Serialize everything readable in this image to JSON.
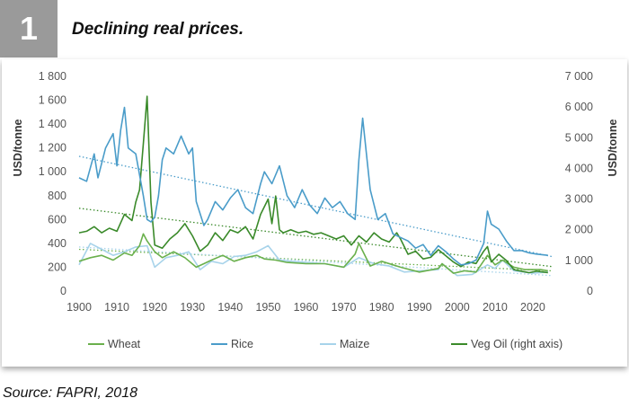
{
  "figure": {
    "number": "1",
    "title": "Declining real prices.",
    "source": "Source: FAPRI, 2018"
  },
  "colors": {
    "wheat": "#6ab04c",
    "rice": "#4a9cc9",
    "maize": "#a7d3ea",
    "vegoil": "#3a8a2a",
    "axis_text": "#555555",
    "grid": "#cccccc"
  },
  "chart_data": {
    "type": "line",
    "title": "Declining real prices.",
    "ylabel": "USD/tonne",
    "y2label": "USD/tonne",
    "xlim": [
      1900,
      2025
    ],
    "ylim": [
      0,
      1800
    ],
    "y2lim": [
      0,
      7000
    ],
    "grid": false,
    "legend": "bottom",
    "x_ticks": [
      1900,
      1910,
      1920,
      1930,
      1940,
      1950,
      1960,
      1970,
      1980,
      1990,
      2000,
      2010,
      2020
    ],
    "y_ticks": [
      {
        "v": 0,
        "label": "0"
      },
      {
        "v": 200,
        "label": "200"
      },
      {
        "v": 400,
        "label": "400"
      },
      {
        "v": 600,
        "label": "600"
      },
      {
        "v": 800,
        "label": "800"
      },
      {
        "v": 1000,
        "label": "1 000"
      },
      {
        "v": 1200,
        "label": "1 200"
      },
      {
        "v": 1400,
        "label": "1 400"
      },
      {
        "v": 1600,
        "label": "1 600"
      },
      {
        "v": 1800,
        "label": "1 800"
      }
    ],
    "y2_ticks": [
      {
        "v": 0,
        "label": "0"
      },
      {
        "v": 1000,
        "label": "1 000"
      },
      {
        "v": 2000,
        "label": "2 000"
      },
      {
        "v": 3000,
        "label": "3 000"
      },
      {
        "v": 4000,
        "label": "4 000"
      },
      {
        "v": 5000,
        "label": "5 000"
      },
      {
        "v": 6000,
        "label": "6 000"
      },
      {
        "v": 7000,
        "label": "7 000"
      }
    ],
    "series": [
      {
        "key": "wheat",
        "name": "Wheat",
        "axis": "left",
        "x": [
          1900,
          1903,
          1906,
          1909,
          1912,
          1914,
          1916,
          1917,
          1918,
          1920,
          1922,
          1925,
          1928,
          1931,
          1933,
          1935,
          1938,
          1941,
          1944,
          1947,
          1949,
          1952,
          1955,
          1960,
          1965,
          1970,
          1973,
          1974,
          1977,
          1980,
          1985,
          1990,
          1995,
          1996,
          1999,
          2002,
          2005,
          2008,
          2010,
          2012,
          2015,
          2018,
          2022,
          2024
        ],
        "values": [
          250,
          280,
          300,
          260,
          320,
          300,
          380,
          480,
          420,
          330,
          280,
          330,
          280,
          200,
          230,
          260,
          300,
          250,
          280,
          300,
          270,
          260,
          240,
          230,
          230,
          200,
          310,
          400,
          210,
          250,
          200,
          160,
          190,
          230,
          150,
          170,
          160,
          300,
          220,
          260,
          200,
          180,
          180,
          170
        ],
        "trend": [
          350,
          170
        ]
      },
      {
        "key": "rice",
        "name": "Rice",
        "axis": "left",
        "x": [
          1900,
          1902,
          1904,
          1905,
          1907,
          1909,
          1910,
          1911,
          1912,
          1913,
          1915,
          1917,
          1918,
          1919,
          1920,
          1921,
          1922,
          1923,
          1925,
          1927,
          1929,
          1930,
          1931,
          1933,
          1934,
          1936,
          1938,
          1940,
          1942,
          1944,
          1946,
          1948,
          1949,
          1951,
          1953,
          1955,
          1957,
          1959,
          1961,
          1963,
          1965,
          1967,
          1969,
          1971,
          1973,
          1974,
          1975,
          1977,
          1979,
          1981,
          1983,
          1985,
          1987,
          1989,
          1991,
          1993,
          1995,
          1997,
          1999,
          2001,
          2003,
          2005,
          2007,
          2008,
          2009,
          2011,
          2013,
          2015,
          2017,
          2019,
          2021,
          2024
        ],
        "values": [
          950,
          920,
          1150,
          950,
          1200,
          1320,
          1050,
          1350,
          1540,
          1200,
          1150,
          800,
          600,
          580,
          620,
          800,
          1100,
          1200,
          1150,
          1300,
          1150,
          1200,
          750,
          550,
          600,
          750,
          680,
          780,
          850,
          700,
          650,
          900,
          1000,
          900,
          1050,
          800,
          700,
          850,
          720,
          650,
          780,
          700,
          750,
          650,
          600,
          1100,
          1450,
          850,
          600,
          650,
          480,
          450,
          420,
          360,
          390,
          300,
          380,
          330,
          270,
          220,
          230,
          260,
          400,
          670,
          560,
          520,
          420,
          340,
          340,
          320,
          310,
          300
        ],
        "trend": [
          1130,
          290
        ]
      },
      {
        "key": "maize",
        "name": "Maize",
        "axis": "left",
        "x": [
          1900,
          1903,
          1906,
          1909,
          1912,
          1915,
          1918,
          1920,
          1923,
          1926,
          1929,
          1932,
          1935,
          1938,
          1941,
          1944,
          1947,
          1950,
          1953,
          1956,
          1960,
          1965,
          1970,
          1974,
          1978,
          1982,
          1986,
          1990,
          1995,
          1996,
          2000,
          2004,
          2008,
          2010,
          2012,
          2015,
          2020,
          2024
        ],
        "values": [
          220,
          400,
          350,
          300,
          330,
          370,
          380,
          200,
          280,
          300,
          330,
          180,
          250,
          230,
          290,
          300,
          330,
          380,
          260,
          250,
          240,
          230,
          200,
          280,
          230,
          210,
          160,
          170,
          180,
          230,
          130,
          140,
          220,
          190,
          260,
          170,
          150,
          160
        ],
        "trend": [
          370,
          130
        ]
      },
      {
        "key": "vegoil",
        "name": "Veg Oil (right axis)",
        "axis": "right",
        "x": [
          1900,
          1902,
          1904,
          1906,
          1908,
          1910,
          1912,
          1914,
          1915,
          1916,
          1917,
          1918,
          1919,
          1920,
          1922,
          1924,
          1926,
          1928,
          1930,
          1932,
          1934,
          1936,
          1938,
          1940,
          1942,
          1944,
          1946,
          1948,
          1950,
          1951,
          1952,
          1953,
          1954,
          1956,
          1958,
          1960,
          1962,
          1964,
          1966,
          1968,
          1970,
          1972,
          1974,
          1976,
          1978,
          1980,
          1982,
          1984,
          1985,
          1987,
          1989,
          1991,
          1993,
          1995,
          1997,
          1999,
          2001,
          2003,
          2005,
          2007,
          2008,
          2009,
          2011,
          2013,
          2015,
          2017,
          2019,
          2021,
          2024
        ],
        "values": [
          1900,
          1950,
          2100,
          1900,
          2050,
          1950,
          2500,
          2300,
          2900,
          3300,
          4800,
          6350,
          2900,
          1500,
          1400,
          1700,
          1900,
          2200,
          1800,
          1300,
          1500,
          1900,
          1650,
          2000,
          1900,
          2100,
          1700,
          2500,
          3000,
          2200,
          3100,
          2000,
          1900,
          2000,
          1900,
          1950,
          1850,
          1900,
          1800,
          1700,
          1800,
          1500,
          1800,
          1600,
          1900,
          1700,
          1600,
          1900,
          1700,
          1200,
          1300,
          1050,
          1100,
          1350,
          1150,
          950,
          800,
          950,
          900,
          1300,
          1450,
          950,
          1200,
          1000,
          700,
          650,
          600,
          650,
          600
        ],
        "trend": [
          2700,
          800
        ]
      }
    ]
  }
}
